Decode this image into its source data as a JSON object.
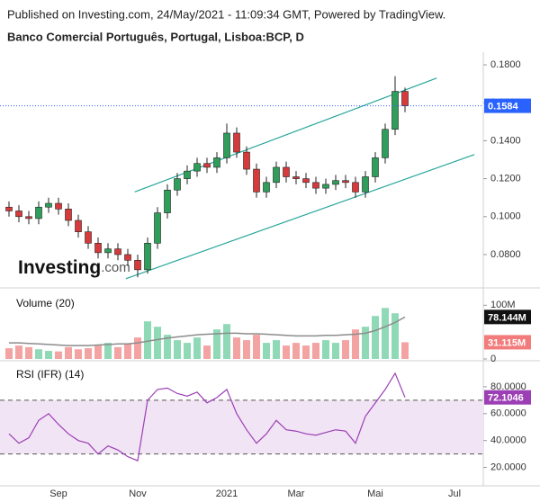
{
  "source": "Published on Investing.com, 24/May/2021 - 11:09:34 GMT, Powered by TradingView.",
  "watermark": {
    "main": "Investing",
    "suffix": ".com"
  },
  "chart_data": [
    {
      "type": "candlestick",
      "title": "Banco Comercial Português, Portugal, Lisboa:BCP, D",
      "categories": [
        null,
        null,
        null,
        null,
        null,
        "Sep",
        null,
        null,
        null,
        null,
        null,
        null,
        null,
        "Nov",
        null,
        null,
        null,
        null,
        null,
        null,
        null,
        null,
        "2021",
        null,
        null,
        null,
        null,
        null,
        null,
        "Mar",
        null,
        null,
        null,
        null,
        null,
        null,
        null,
        "Mai",
        null,
        null,
        null,
        null,
        null,
        null,
        null,
        "Jul",
        null,
        null
      ],
      "open": [
        0.105,
        0.103,
        0.1,
        0.099,
        0.105,
        0.107,
        0.104,
        0.098,
        0.092,
        0.086,
        0.081,
        0.083,
        0.08,
        0.077,
        0.072,
        0.086,
        0.102,
        0.114,
        0.12,
        0.124,
        0.128,
        0.126,
        0.131,
        0.144,
        0.134,
        0.125,
        0.113,
        0.118,
        0.126,
        0.121,
        0.12,
        0.118,
        0.115,
        0.117,
        0.119,
        0.118,
        0.113,
        0.121,
        0.131,
        0.146,
        0.166,
        null,
        null,
        null,
        null,
        null,
        null,
        null
      ],
      "high": [
        0.108,
        0.106,
        0.103,
        0.108,
        0.11,
        0.11,
        0.107,
        0.101,
        0.095,
        0.089,
        0.086,
        0.086,
        0.083,
        0.08,
        0.089,
        0.105,
        0.117,
        0.123,
        0.127,
        0.131,
        0.131,
        0.134,
        0.149,
        0.147,
        0.137,
        0.128,
        0.121,
        0.129,
        0.129,
        0.124,
        0.123,
        0.121,
        0.12,
        0.122,
        0.122,
        0.121,
        0.124,
        0.134,
        0.149,
        0.174,
        0.168,
        null,
        null,
        null,
        null,
        null,
        null,
        null
      ],
      "low": [
        0.1,
        0.097,
        0.096,
        0.096,
        0.102,
        0.101,
        0.095,
        0.089,
        0.083,
        0.078,
        0.078,
        0.077,
        0.074,
        0.068,
        0.07,
        0.083,
        0.099,
        0.111,
        0.117,
        0.121,
        0.123,
        0.123,
        0.128,
        0.131,
        0.122,
        0.11,
        0.11,
        0.115,
        0.118,
        0.117,
        0.115,
        0.112,
        0.112,
        0.114,
        0.115,
        0.11,
        0.11,
        0.118,
        0.128,
        0.143,
        0.155,
        null,
        null,
        null,
        null,
        null,
        null,
        null
      ],
      "close": [
        0.103,
        0.1,
        0.099,
        0.105,
        0.107,
        0.104,
        0.098,
        0.092,
        0.086,
        0.081,
        0.083,
        0.08,
        0.077,
        0.072,
        0.086,
        0.102,
        0.114,
        0.12,
        0.124,
        0.128,
        0.126,
        0.131,
        0.144,
        0.134,
        0.125,
        0.113,
        0.118,
        0.126,
        0.121,
        0.12,
        0.118,
        0.115,
        0.117,
        0.119,
        0.118,
        0.113,
        0.121,
        0.131,
        0.146,
        0.166,
        0.1584,
        null,
        null,
        null,
        null,
        null,
        null,
        null
      ],
      "up_color": "#2e9e5a",
      "down_color": "#d63a3a",
      "last_color": "#2962ff",
      "trendlines": [
        {
          "x": [
            12.7,
            43.2
          ],
          "y": [
            0.113,
            0.173
          ],
          "color": "#26a69a"
        },
        {
          "x": [
            11.8,
            47
          ],
          "y": [
            0.0673,
            0.1327
          ],
          "color": "#26a69a"
        }
      ],
      "ylim": [
        0.0634,
        0.1857
      ],
      "yticks": [
        {
          "value": 0.08,
          "label": "0.0800"
        },
        {
          "value": 0.1,
          "label": "0.1000"
        },
        {
          "value": 0.12,
          "label": "0.1200"
        },
        {
          "value": 0.14,
          "label": "0.1400"
        },
        {
          "value": 0.16,
          "label": "0.1600"
        },
        {
          "value": 0.18,
          "label": "0.1800"
        }
      ]
    },
    {
      "type": "volume",
      "title": "Volume (20)",
      "values": [
        20,
        25,
        22,
        18,
        15,
        14,
        22,
        18,
        20,
        25,
        30,
        22,
        28,
        40,
        70,
        60,
        45,
        35,
        30,
        40,
        25,
        55,
        65,
        40,
        35,
        45,
        30,
        35,
        25,
        30,
        25,
        30,
        35,
        30,
        35,
        55,
        60,
        80,
        95,
        85,
        31.115,
        null,
        null,
        null,
        null,
        null,
        null,
        null
      ],
      "value_labels": [
        null,
        null,
        null,
        null,
        null,
        null,
        null,
        null,
        null,
        null,
        null,
        null,
        null,
        null,
        null,
        null,
        null,
        null,
        null,
        null,
        null,
        null,
        null,
        null,
        null,
        null,
        null,
        null,
        null,
        null,
        null,
        null,
        null,
        null,
        null,
        null,
        null,
        null,
        null,
        null,
        "31.115M",
        null,
        null,
        null,
        null,
        null,
        null,
        null
      ],
      "ma": [
        30,
        30,
        29,
        28,
        27,
        26,
        25,
        25,
        25,
        26,
        27,
        28,
        28,
        30,
        33,
        36,
        39,
        41,
        43,
        45,
        46,
        47,
        48,
        48,
        47,
        47,
        46,
        45,
        44,
        43,
        43,
        43,
        44,
        44,
        45,
        46,
        48,
        53,
        60,
        68,
        78.144,
        null,
        null,
        null,
        null,
        null,
        null,
        null
      ],
      "ma_labels": [
        null,
        null,
        null,
        null,
        null,
        null,
        null,
        null,
        null,
        null,
        null,
        null,
        null,
        null,
        null,
        null,
        null,
        null,
        null,
        null,
        null,
        null,
        null,
        null,
        null,
        null,
        null,
        null,
        null,
        null,
        null,
        null,
        null,
        null,
        null,
        null,
        null,
        null,
        null,
        null,
        "78.144M",
        null,
        null,
        null,
        null,
        null,
        null,
        null
      ],
      "up_color": "#8fd9b6",
      "down_color": "#f4a3a3",
      "ma_color": "#8c8c8c",
      "ma_box_color": "#111111",
      "last_box_color": "#f27c7c",
      "ylim": [
        0,
        129
      ],
      "yticks": [
        0,
        {
          "value": 100,
          "label": "100M"
        }
      ]
    },
    {
      "type": "line",
      "title": "RSI (IFR) (14)",
      "values": [
        45,
        38,
        42,
        55,
        60,
        52,
        45,
        40,
        38,
        30,
        36,
        33,
        28,
        25,
        70,
        78,
        79,
        75,
        73,
        76,
        68,
        72,
        78,
        60,
        48,
        38,
        45,
        55,
        48,
        47,
        45,
        44,
        46,
        48,
        47,
        38,
        58,
        68,
        78,
        90,
        72.1046,
        null,
        null,
        null,
        null,
        null,
        null,
        null
      ],
      "color": "#9c3fb5",
      "band": [
        30,
        70
      ],
      "band_color": "#f1e4f4",
      "ylim": [
        7,
        98
      ],
      "yticks": [
        {
          "value": 20,
          "label": "20.0000"
        },
        {
          "value": 40,
          "label": "40.0000"
        },
        {
          "value": 60,
          "label": "60.0000"
        },
        {
          "value": 80,
          "label": "80.0000"
        }
      ]
    }
  ]
}
